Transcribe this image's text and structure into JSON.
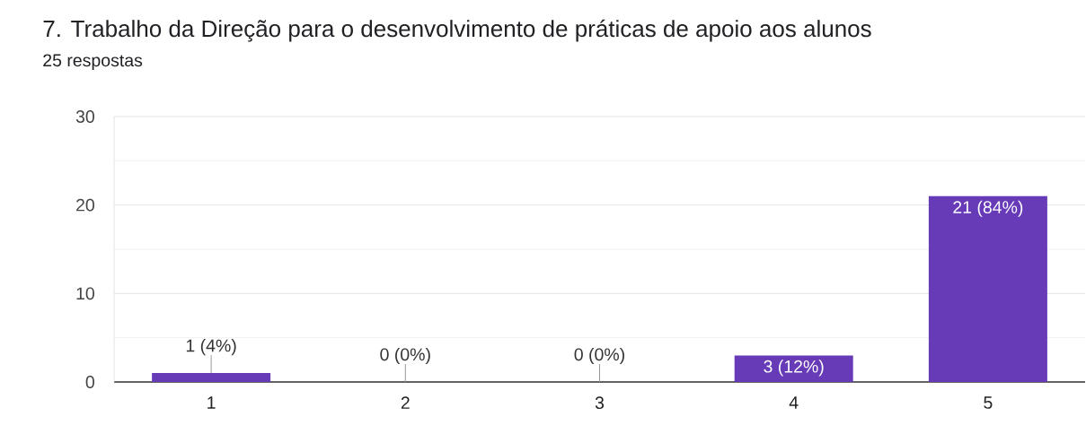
{
  "chart_data": {
    "type": "bar",
    "title": "7. Trabalho da Direção para o desenvolvimento de práticas de apoio aos alunos",
    "subtitle": "25 respostas",
    "categories": [
      "1",
      "2",
      "3",
      "4",
      "5"
    ],
    "values": [
      1,
      0,
      0,
      3,
      21
    ],
    "value_labels": [
      "1 (4%)",
      "0 (0%)",
      "0 (0%)",
      "3 (12%)",
      "21 (84%)"
    ],
    "color": "#673ab7",
    "ylim": [
      0,
      30
    ],
    "yticks": [
      0,
      {
        "value": 5,
        "label": null
      },
      10,
      {
        "value": 15,
        "label": null
      },
      20,
      {
        "value": 25,
        "label": null
      },
      30
    ],
    "grid": "y"
  }
}
